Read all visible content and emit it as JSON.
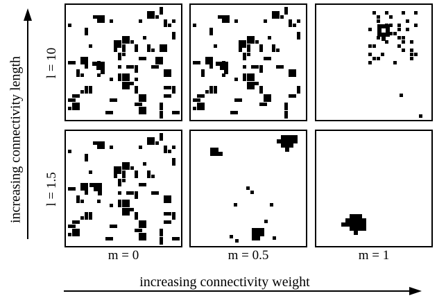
{
  "axes": {
    "y_title": "increasing connectivity length",
    "x_title": "increasing connectivity weight"
  },
  "rows": [
    {
      "label": "l = 10"
    },
    {
      "label": "l = 1.5"
    }
  ],
  "columns": [
    {
      "label": "m = 0"
    },
    {
      "label": "m = 0.5"
    },
    {
      "label": "m = 1"
    }
  ],
  "colors": {
    "ink": "#000000",
    "background": "#ffffff"
  }
}
